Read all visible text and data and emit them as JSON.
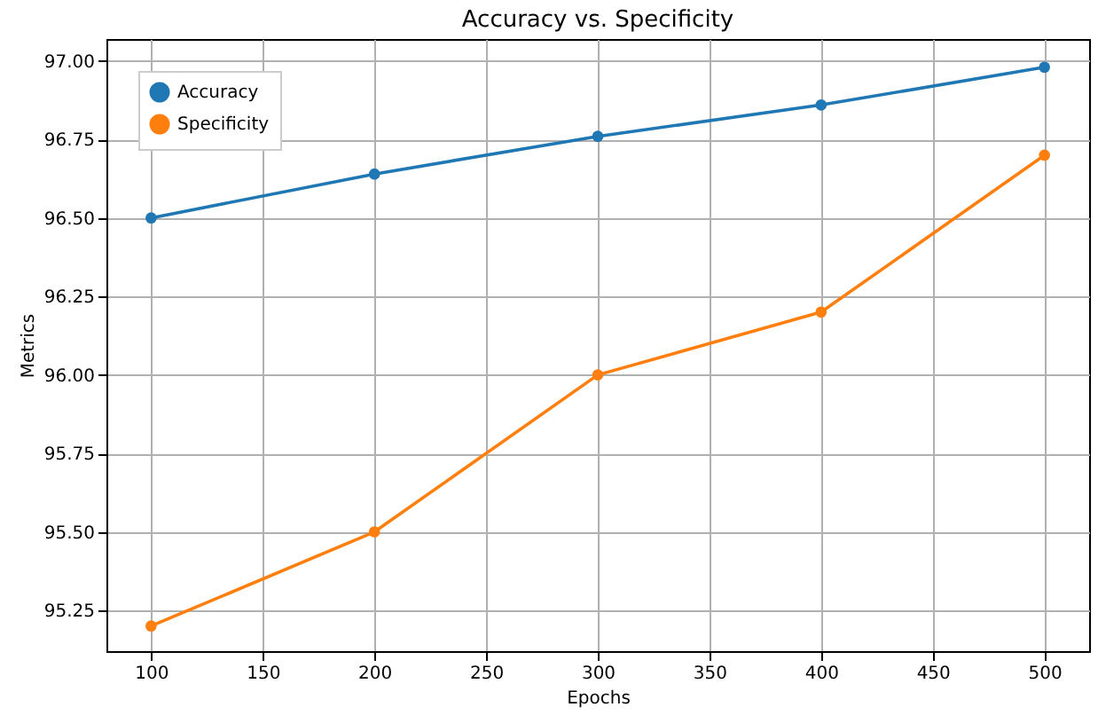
{
  "chart_data": {
    "type": "line",
    "title": "Accuracy vs. Specificity",
    "xlabel": "Epochs",
    "ylabel": "Metrics",
    "x": [
      100,
      200,
      300,
      400,
      500
    ],
    "series": [
      {
        "name": "Accuracy",
        "color": "#1f77b4",
        "values": [
          96.5,
          96.64,
          96.76,
          96.86,
          96.98
        ]
      },
      {
        "name": "Specificity",
        "color": "#ff7f0e",
        "values": [
          95.2,
          95.5,
          96.0,
          96.2,
          96.7
        ]
      }
    ],
    "xlim": [
      80,
      520
    ],
    "xticks": [
      100,
      150,
      200,
      250,
      300,
      350,
      400,
      450,
      500
    ],
    "ylim": [
      95.12,
      97.07
    ],
    "yticks": [
      {
        "value": 95.25,
        "label": "95.25"
      },
      {
        "value": 95.5,
        "label": "95.50"
      },
      {
        "value": 95.75,
        "label": "95.75"
      },
      {
        "value": 96,
        "label": "96.00"
      },
      {
        "value": 96.25,
        "label": "96.25"
      },
      {
        "value": 96.5,
        "label": "96.50"
      },
      {
        "value": 96.75,
        "label": "96.75"
      },
      {
        "value": 97,
        "label": "97.00"
      }
    ],
    "grid": true,
    "legend": "top left",
    "marker": "circle",
    "line_style": "solid"
  }
}
